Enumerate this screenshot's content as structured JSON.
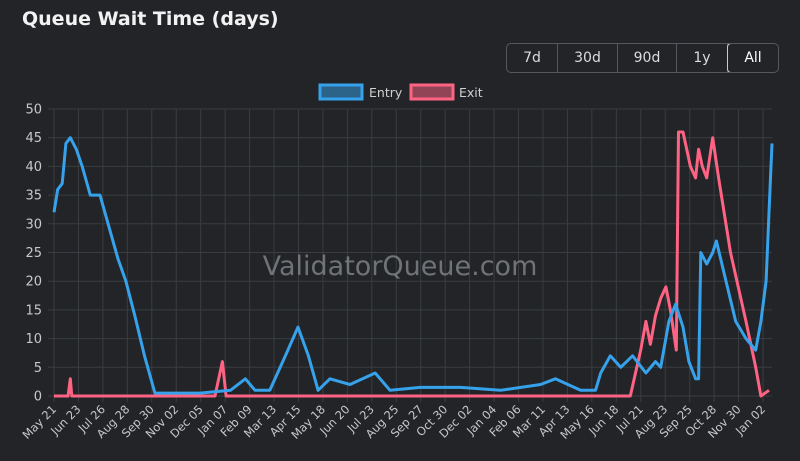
{
  "header": {
    "title": "Queue Wait Time (days)"
  },
  "range_buttons": [
    {
      "label": "7d"
    },
    {
      "label": "30d"
    },
    {
      "label": "90d"
    },
    {
      "label": "1y"
    },
    {
      "label": "All",
      "active": true
    }
  ],
  "watermark": "ValidatorQueue.com",
  "colors": {
    "entry": "#36a2eb",
    "exit": "#ff6384",
    "grid": "#3a3d41",
    "background": "#222427"
  },
  "chart_data": {
    "type": "line",
    "title": "Queue Wait Time (days)",
    "legend_position": "top",
    "grid": true,
    "ylim": [
      0,
      50
    ],
    "yticks": [
      0,
      5,
      10,
      15,
      20,
      25,
      30,
      35,
      40,
      45,
      50
    ],
    "xlim": [
      "2023-05-21",
      "2026-01-13"
    ],
    "xtick_labels": [
      "May 21",
      "Jun 23",
      "Jul 26",
      "Aug 28",
      "Sep 30",
      "Nov 02",
      "Dec 05",
      "Jan 07",
      "Feb 09",
      "Mar 13",
      "Apr 15",
      "May 18",
      "Jun 20",
      "Jul 23",
      "Aug 25",
      "Sep 27",
      "Oct 30",
      "Dec 02",
      "Jan 04",
      "Feb 06",
      "Mar 11",
      "Apr 13",
      "May 16",
      "Jun 18",
      "Jul 21",
      "Aug 23",
      "Sep 25",
      "Oct 28",
      "Nov 30",
      "Jan 02"
    ],
    "series": [
      {
        "name": "Entry",
        "points": [
          [
            "2023-05-21",
            32
          ],
          [
            "2023-05-26",
            36
          ],
          [
            "2023-06-01",
            37
          ],
          [
            "2023-06-06",
            44
          ],
          [
            "2023-06-12",
            45
          ],
          [
            "2023-06-20",
            43
          ],
          [
            "2023-06-28",
            40
          ],
          [
            "2023-07-09",
            35
          ],
          [
            "2023-07-22",
            35
          ],
          [
            "2023-08-02",
            30
          ],
          [
            "2023-08-15",
            24
          ],
          [
            "2023-08-26",
            20
          ],
          [
            "2023-09-07",
            14
          ],
          [
            "2023-09-20",
            7
          ],
          [
            "2023-10-04",
            0.5
          ],
          [
            "2023-10-18",
            0.5
          ],
          [
            "2023-12-04",
            0.5
          ],
          [
            "2024-01-14",
            1
          ],
          [
            "2024-02-03",
            3
          ],
          [
            "2024-02-16",
            1
          ],
          [
            "2024-03-07",
            1
          ],
          [
            "2024-03-28",
            7
          ],
          [
            "2024-04-14",
            12
          ],
          [
            "2024-04-28",
            7
          ],
          [
            "2024-05-11",
            1
          ],
          [
            "2024-05-27",
            3
          ],
          [
            "2024-06-23",
            2
          ],
          [
            "2024-07-27",
            4
          ],
          [
            "2024-08-16",
            1
          ],
          [
            "2024-09-26",
            1.5
          ],
          [
            "2024-11-19",
            1.5
          ],
          [
            "2025-01-12",
            1
          ],
          [
            "2025-03-07",
            2
          ],
          [
            "2025-03-27",
            3
          ],
          [
            "2025-04-30",
            1
          ],
          [
            "2025-05-20",
            1
          ],
          [
            "2025-05-27",
            4
          ],
          [
            "2025-06-09",
            7
          ],
          [
            "2025-06-23",
            5
          ],
          [
            "2025-07-09",
            7
          ],
          [
            "2025-07-27",
            4
          ],
          [
            "2025-08-09",
            6
          ],
          [
            "2025-08-16",
            5
          ],
          [
            "2025-08-27",
            13
          ],
          [
            "2025-09-05",
            16
          ],
          [
            "2025-09-15",
            12
          ],
          [
            "2025-09-23",
            6
          ],
          [
            "2025-10-02",
            3
          ],
          [
            "2025-10-06",
            3
          ],
          [
            "2025-10-09",
            25
          ],
          [
            "2025-10-17",
            23
          ],
          [
            "2025-10-25",
            25
          ],
          [
            "2025-10-30",
            27
          ],
          [
            "2025-11-12",
            20
          ],
          [
            "2025-11-25",
            13
          ],
          [
            "2025-12-09",
            10
          ],
          [
            "2025-12-22",
            8
          ],
          [
            "2025-12-29",
            13
          ],
          [
            "2026-01-05",
            20
          ],
          [
            "2026-01-09",
            32
          ],
          [
            "2026-01-13",
            44
          ]
        ]
      },
      {
        "name": "Exit",
        "points": [
          [
            "2023-05-21",
            0
          ],
          [
            "2023-06-09",
            0
          ],
          [
            "2023-06-12",
            3
          ],
          [
            "2023-06-14",
            0
          ],
          [
            "2023-12-24",
            0
          ],
          [
            "2024-01-03",
            6
          ],
          [
            "2024-01-08",
            0
          ],
          [
            "2025-07-06",
            0
          ],
          [
            "2025-07-20",
            8
          ],
          [
            "2025-07-27",
            13
          ],
          [
            "2025-08-02",
            9
          ],
          [
            "2025-08-09",
            14
          ],
          [
            "2025-08-16",
            17
          ],
          [
            "2025-08-23",
            19
          ],
          [
            "2025-08-29",
            15
          ],
          [
            "2025-09-06",
            8
          ],
          [
            "2025-09-09",
            46
          ],
          [
            "2025-09-15",
            46
          ],
          [
            "2025-09-25",
            40
          ],
          [
            "2025-10-02",
            38
          ],
          [
            "2025-10-06",
            43
          ],
          [
            "2025-10-11",
            40
          ],
          [
            "2025-10-17",
            38
          ],
          [
            "2025-10-25",
            45
          ],
          [
            "2025-11-02",
            38
          ],
          [
            "2025-11-18",
            25
          ],
          [
            "2025-12-09",
            13
          ],
          [
            "2025-12-22",
            5
          ],
          [
            "2025-12-29",
            0
          ],
          [
            "2026-01-09",
            1
          ]
        ]
      }
    ]
  }
}
